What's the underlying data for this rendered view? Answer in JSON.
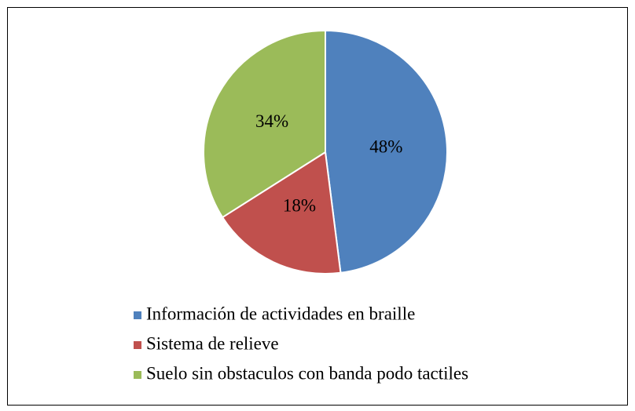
{
  "chart_data": {
    "type": "pie",
    "categories": [
      "Información de actividades en braille",
      "Sistema de relieve",
      "Suelo sin obstaculos con banda podo tactiles"
    ],
    "values": [
      48,
      18,
      34
    ],
    "value_labels": [
      "48%",
      "18%",
      "34%"
    ],
    "colors": [
      "#4f81bd",
      "#c0504d",
      "#9bbb59"
    ]
  }
}
